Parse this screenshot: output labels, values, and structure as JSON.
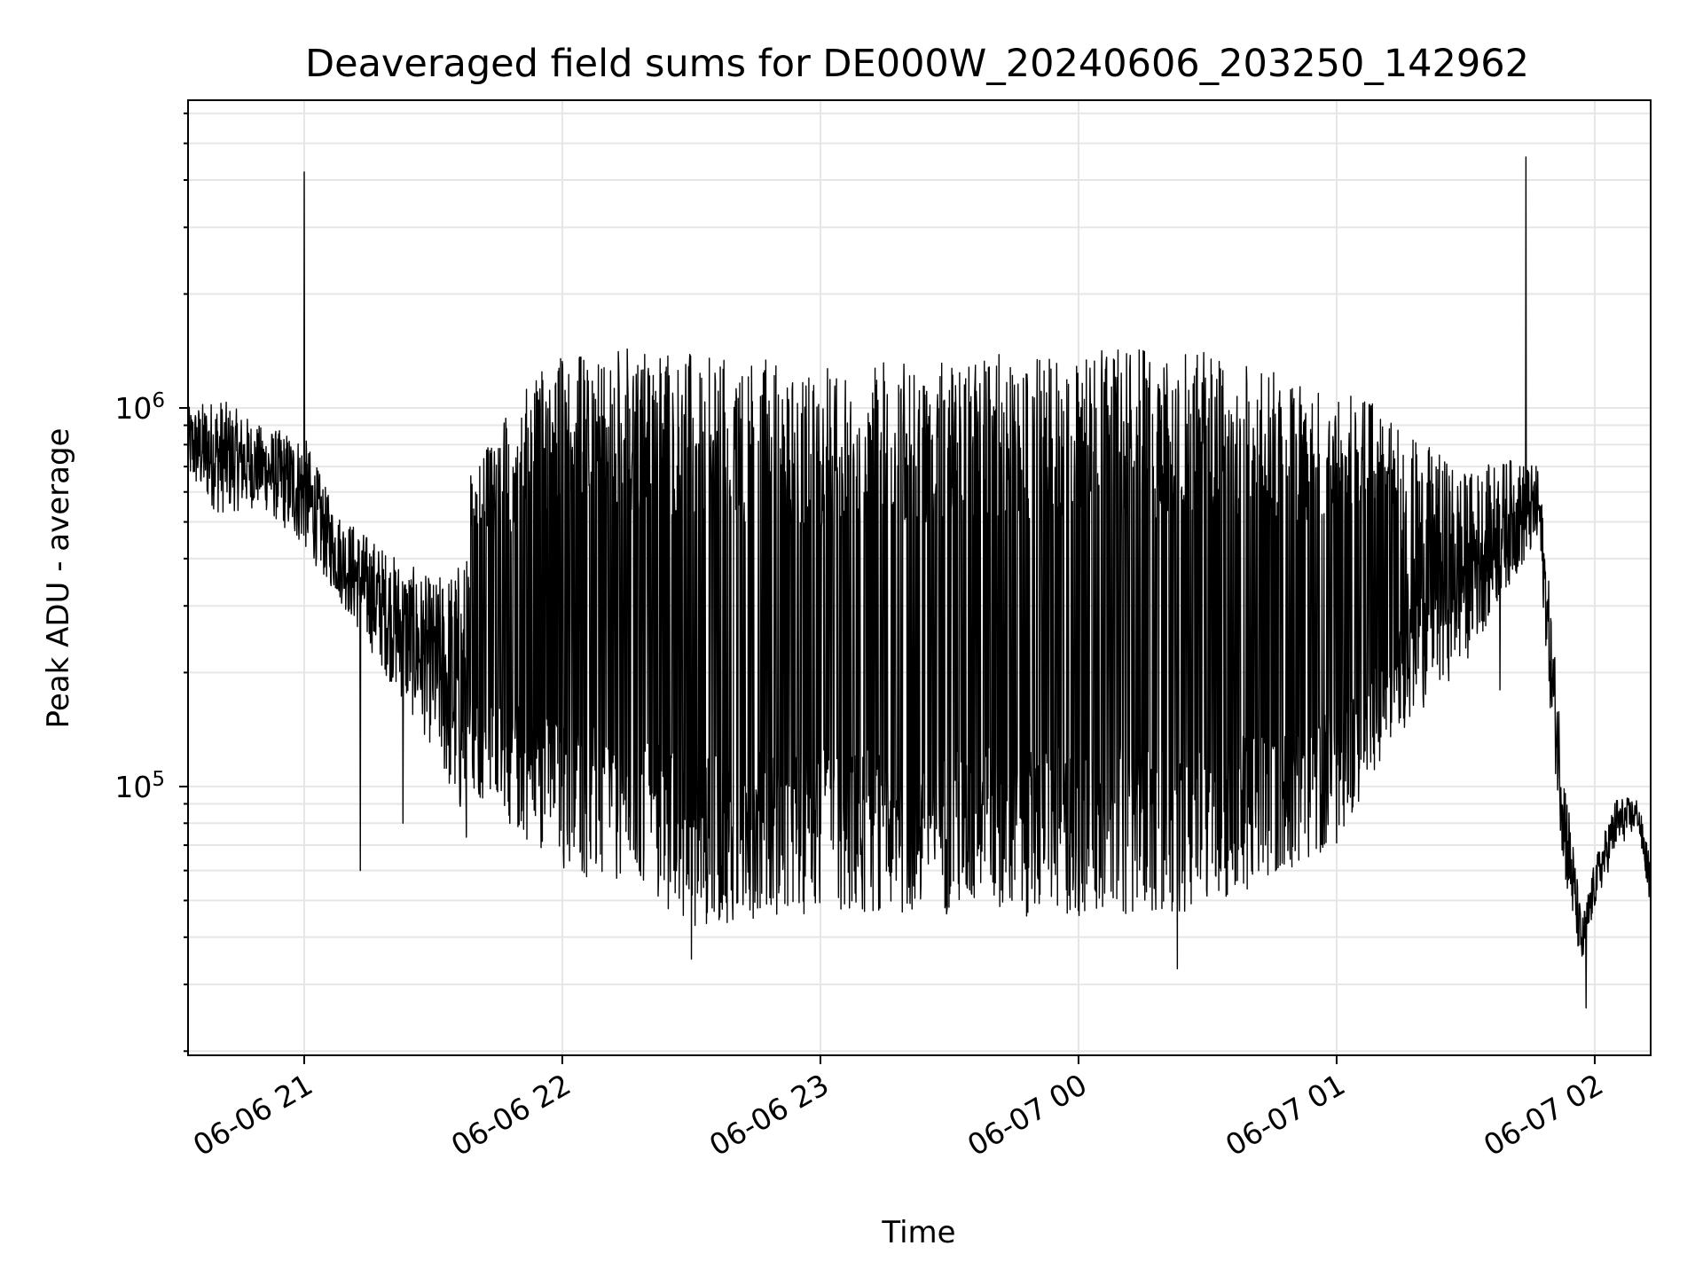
{
  "chart_data": {
    "type": "line",
    "title": "Deaveraged field sums for DE000W_20240606_203250_142962",
    "xlabel": "Time",
    "ylabel": "Peak ADU - average",
    "x_scale": "time",
    "y_scale": "log",
    "xlim": [
      "2024-06-06 20:33",
      "2024-06-07 02:13"
    ],
    "ylim": [
      19500,
      6500000
    ],
    "x_ticks": [
      {
        "label": "06-06 21",
        "value": "2024-06-06 21:00"
      },
      {
        "label": "06-06 22",
        "value": "2024-06-06 22:00"
      },
      {
        "label": "06-06 23",
        "value": "2024-06-06 23:00"
      },
      {
        "label": "06-07 00",
        "value": "2024-06-07 00:00"
      },
      {
        "label": "06-07 01",
        "value": "2024-06-07 01:00"
      },
      {
        "label": "06-07 02",
        "value": "2024-06-07 02:00"
      }
    ],
    "y_ticks": [
      {
        "base": "10",
        "exp": "5",
        "value": 100000
      },
      {
        "base": "10",
        "exp": "6",
        "value": 1000000
      }
    ],
    "grid": true,
    "legend": "none",
    "line_color": "#000000",
    "envelope": [
      {
        "time": "2024-06-06 20:33",
        "low": 700000,
        "high": 1100000,
        "typical": 800000
      },
      {
        "time": "2024-06-06 20:40",
        "low": 560000,
        "high": 1150000,
        "typical": 750000
      },
      {
        "time": "2024-06-06 20:50",
        "low": 550000,
        "high": 900000,
        "typical": 700000
      },
      {
        "time": "2024-06-06 21:00",
        "low": 400000,
        "high": 800000,
        "typical": 600000
      },
      {
        "time": "2024-06-06 21:07",
        "low": 300000,
        "high": 500000,
        "typical": 420000
      },
      {
        "time": "2024-06-06 21:20",
        "low": 190000,
        "high": 420000,
        "typical": 280000
      },
      {
        "time": "2024-06-06 21:30",
        "low": 160000,
        "high": 450000,
        "typical": 210000
      },
      {
        "time": "2024-06-06 21:40",
        "low": 95000,
        "high": 700000,
        "typical": 160000
      },
      {
        "time": "2024-06-06 21:50",
        "low": 75000,
        "high": 1100000,
        "typical": 100000
      },
      {
        "time": "2024-06-06 22:00",
        "low": 60000,
        "high": 1400000,
        "typical": 300000
      },
      {
        "time": "2024-06-06 22:20",
        "low": 50000,
        "high": 1450000,
        "typical": 300000
      },
      {
        "time": "2024-06-06 22:30",
        "low": 42000,
        "high": 1400000,
        "typical": 250000
      },
      {
        "time": "2024-06-06 22:45",
        "low": 45000,
        "high": 1350000,
        "typical": 280000
      },
      {
        "time": "2024-06-06 23:00",
        "low": 46000,
        "high": 1300000,
        "typical": 300000
      },
      {
        "time": "2024-06-06 23:30",
        "low": 46000,
        "high": 1350000,
        "typical": 280000
      },
      {
        "time": "2024-06-07 00:00",
        "low": 45000,
        "high": 1450000,
        "typical": 250000
      },
      {
        "time": "2024-06-07 00:30",
        "low": 47000,
        "high": 1400000,
        "typical": 250000
      },
      {
        "time": "2024-06-07 01:00",
        "low": 70000,
        "high": 1150000,
        "typical": 300000
      },
      {
        "time": "2024-06-07 01:15",
        "low": 150000,
        "high": 950000,
        "typical": 350000
      },
      {
        "time": "2024-06-07 01:30",
        "low": 250000,
        "high": 800000,
        "typical": 380000
      },
      {
        "time": "2024-06-07 01:40",
        "low": 300000,
        "high": 650000,
        "typical": 500000
      },
      {
        "time": "2024-06-07 01:47",
        "low": 400000,
        "high": 650000,
        "typical": 550000
      },
      {
        "time": "2024-06-07 01:50",
        "low": 150000,
        "high": 300000,
        "typical": 200000
      },
      {
        "time": "2024-06-07 01:53",
        "low": 60000,
        "high": 120000,
        "typical": 80000
      },
      {
        "time": "2024-06-07 01:57",
        "low": 33000,
        "high": 45000,
        "typical": 38000
      },
      {
        "time": "2024-06-07 02:00",
        "low": 45000,
        "high": 60000,
        "typical": 55000
      },
      {
        "time": "2024-06-07 02:05",
        "low": 65000,
        "high": 90000,
        "typical": 80000
      },
      {
        "time": "2024-06-07 02:10",
        "low": 75000,
        "high": 90000,
        "typical": 85000
      },
      {
        "time": "2024-06-07 02:13",
        "low": 45000,
        "high": 60000,
        "typical": 55000
      }
    ],
    "spikes": [
      {
        "time": "2024-06-06 21:00",
        "value": 4200000
      },
      {
        "time": "2024-06-06 21:13",
        "value": 60000
      },
      {
        "time": "2024-06-06 21:23",
        "value": 80000
      },
      {
        "time": "2024-06-06 22:30",
        "value": 35000
      },
      {
        "time": "2024-06-07 00:23",
        "value": 33000
      },
      {
        "time": "2024-06-07 01:38",
        "value": 180000
      },
      {
        "time": "2024-06-07 01:44",
        "value": 4600000
      },
      {
        "time": "2024-06-07 01:58",
        "value": 26000
      }
    ]
  }
}
